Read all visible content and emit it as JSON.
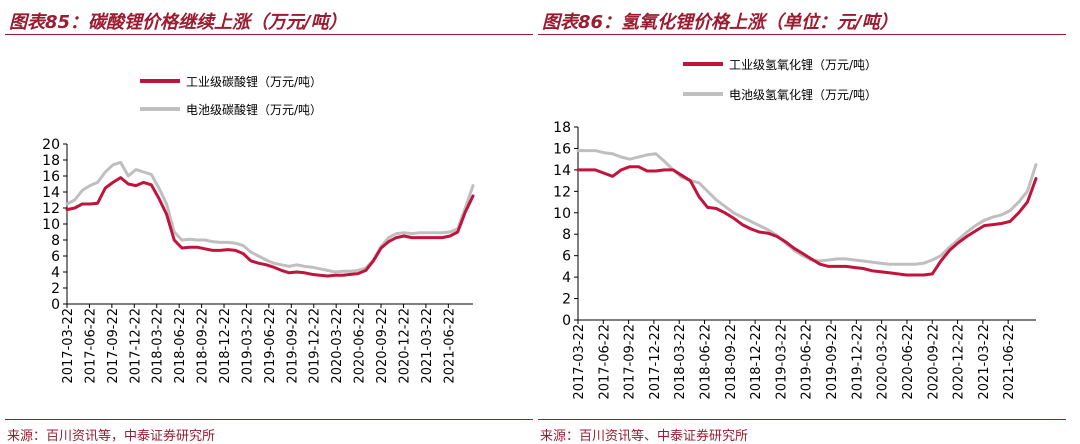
{
  "chart_data": [
    {
      "type": "line",
      "title": "图表85：碳酸锂价格继续上涨（万元/吨）",
      "source": "来源：百川资讯等，中泰证券研究所",
      "ylim": [
        0,
        20
      ],
      "yticks": [
        "0",
        "2",
        "4",
        "6",
        "8",
        "10",
        "12",
        "14",
        "16",
        "18",
        "20"
      ],
      "xlim": [
        0,
        53
      ],
      "x_tick_labels": [
        "2017-03-22",
        "2017-06-22",
        "2017-09-22",
        "2017-12-22",
        "2018-03-22",
        "2018-06-22",
        "2018-09-22",
        "2018-12-22",
        "2019-03-22",
        "2019-06-22",
        "2019-09-22",
        "2019-12-22",
        "2020-03-22",
        "2020-06-22",
        "2020-09-22",
        "2020-12-22",
        "2021-03-22",
        "2021-06-22"
      ],
      "series": [
        {
          "name": "工业级碳酸锂（万元/吨）",
          "color": "#c0143c",
          "x": [
            0,
            1,
            2,
            3,
            4,
            5,
            6,
            7,
            8,
            9,
            10,
            11,
            12,
            13,
            14,
            15,
            16,
            17,
            18,
            19,
            20,
            21,
            22,
            23,
            24,
            25,
            26,
            27,
            28,
            29,
            30,
            31,
            32,
            33,
            34,
            35,
            36,
            37,
            38,
            39,
            40,
            41,
            42,
            43,
            44,
            45,
            46,
            47,
            48,
            49,
            50,
            51,
            52,
            53
          ],
          "y": [
            11.8,
            12.0,
            12.5,
            12.5,
            12.6,
            14.5,
            15.2,
            15.8,
            15.0,
            14.8,
            15.2,
            14.9,
            13.2,
            11.2,
            8.0,
            7.0,
            7.1,
            7.1,
            6.9,
            6.7,
            6.7,
            6.8,
            6.7,
            6.3,
            5.4,
            5.1,
            4.9,
            4.6,
            4.2,
            3.9,
            4.0,
            3.9,
            3.7,
            3.6,
            3.5,
            3.6,
            3.6,
            3.7,
            3.8,
            4.2,
            5.4,
            7.0,
            7.8,
            8.3,
            8.5,
            8.3,
            8.3,
            8.3,
            8.3,
            8.3,
            8.5,
            9.0,
            11.5,
            13.5
          ]
        },
        {
          "name": "电池级碳酸锂（万元/吨）",
          "color": "#bfbfbf",
          "x": [
            0,
            1,
            2,
            3,
            4,
            5,
            6,
            7,
            8,
            9,
            10,
            11,
            12,
            13,
            14,
            15,
            16,
            17,
            18,
            19,
            20,
            21,
            22,
            23,
            24,
            25,
            26,
            27,
            28,
            29,
            30,
            31,
            32,
            33,
            34,
            35,
            36,
            37,
            38,
            39,
            40,
            41,
            42,
            43,
            44,
            45,
            46,
            47,
            48,
            49,
            50,
            51,
            52,
            53
          ],
          "y": [
            12.5,
            13.0,
            14.2,
            14.8,
            15.2,
            16.5,
            17.4,
            17.7,
            16.0,
            16.8,
            16.5,
            16.2,
            14.5,
            12.5,
            9.0,
            8.0,
            8.1,
            8.0,
            8.0,
            7.8,
            7.7,
            7.7,
            7.6,
            7.3,
            6.5,
            6.0,
            5.5,
            5.1,
            4.9,
            4.7,
            4.9,
            4.7,
            4.6,
            4.4,
            4.2,
            4.0,
            4.1,
            4.1,
            4.2,
            4.5,
            5.5,
            7.2,
            8.3,
            8.8,
            8.9,
            8.8,
            8.9,
            8.9,
            8.9,
            8.9,
            9.0,
            9.4,
            12.0,
            14.8
          ]
        }
      ]
    },
    {
      "type": "line",
      "title": "图表86：氢氧化锂价格上涨（单位：元/吨）",
      "source": "来源：百川资讯等、中泰证券研究所",
      "ylim": [
        0,
        18
      ],
      "yticks": [
        "0",
        "2",
        "4",
        "6",
        "8",
        "10",
        "12",
        "14",
        "16",
        "18"
      ],
      "xlim": [
        0,
        53
      ],
      "x_tick_labels": [
        "2017-03-22",
        "2017-06-22",
        "2017-09-22",
        "2017-12-22",
        "2018-03-22",
        "2018-06-22",
        "2018-09-22",
        "2018-12-22",
        "2019-03-22",
        "2019-06-22",
        "2019-09-22",
        "2019-12-22",
        "2020-03-22",
        "2020-06-22",
        "2020-09-22",
        "2020-12-22",
        "2021-03-22",
        "2021-06-22"
      ],
      "series": [
        {
          "name": "工业级氢氧化锂（万元/吨）",
          "color": "#c0143c",
          "x": [
            0,
            1,
            2,
            3,
            4,
            5,
            6,
            7,
            8,
            9,
            10,
            11,
            12,
            13,
            14,
            15,
            16,
            17,
            18,
            19,
            20,
            21,
            22,
            23,
            24,
            25,
            26,
            27,
            28,
            29,
            30,
            31,
            32,
            33,
            34,
            35,
            36,
            37,
            38,
            39,
            40,
            41,
            42,
            43,
            44,
            45,
            46,
            47,
            48,
            49,
            50,
            51,
            52,
            53
          ],
          "y": [
            14.0,
            14.0,
            14.0,
            13.7,
            13.4,
            14.0,
            14.3,
            14.3,
            13.9,
            13.9,
            14.0,
            14.0,
            13.5,
            13.0,
            11.5,
            10.5,
            10.4,
            10.0,
            9.5,
            8.9,
            8.5,
            8.2,
            8.1,
            7.8,
            7.3,
            6.7,
            6.2,
            5.7,
            5.2,
            5.0,
            5.0,
            5.0,
            4.9,
            4.8,
            4.6,
            4.5,
            4.4,
            4.3,
            4.2,
            4.2,
            4.2,
            4.3,
            5.5,
            6.5,
            7.2,
            7.8,
            8.3,
            8.8,
            8.9,
            9.0,
            9.2,
            10.0,
            11.0,
            13.2
          ]
        },
        {
          "name": "电池级氢氧化锂（万元/吨）",
          "color": "#bfbfbf",
          "x": [
            0,
            1,
            2,
            3,
            4,
            5,
            6,
            7,
            8,
            9,
            10,
            11,
            12,
            13,
            14,
            15,
            16,
            17,
            18,
            19,
            20,
            21,
            22,
            23,
            24,
            25,
            26,
            27,
            28,
            29,
            30,
            31,
            32,
            33,
            34,
            35,
            36,
            37,
            38,
            39,
            40,
            41,
            42,
            43,
            44,
            45,
            46,
            47,
            48,
            49,
            50,
            51,
            52,
            53
          ],
          "y": [
            15.8,
            15.8,
            15.8,
            15.6,
            15.5,
            15.2,
            15.0,
            15.2,
            15.4,
            15.5,
            14.8,
            14.0,
            13.3,
            13.0,
            12.8,
            12.0,
            11.2,
            10.6,
            10.0,
            9.6,
            9.2,
            8.8,
            8.4,
            7.9,
            7.2,
            6.5,
            6.0,
            5.6,
            5.5,
            5.6,
            5.7,
            5.7,
            5.6,
            5.5,
            5.4,
            5.3,
            5.2,
            5.2,
            5.2,
            5.2,
            5.3,
            5.6,
            6.0,
            6.8,
            7.5,
            8.2,
            8.8,
            9.3,
            9.6,
            9.8,
            10.2,
            11.0,
            12.0,
            14.5
          ]
        }
      ]
    }
  ]
}
